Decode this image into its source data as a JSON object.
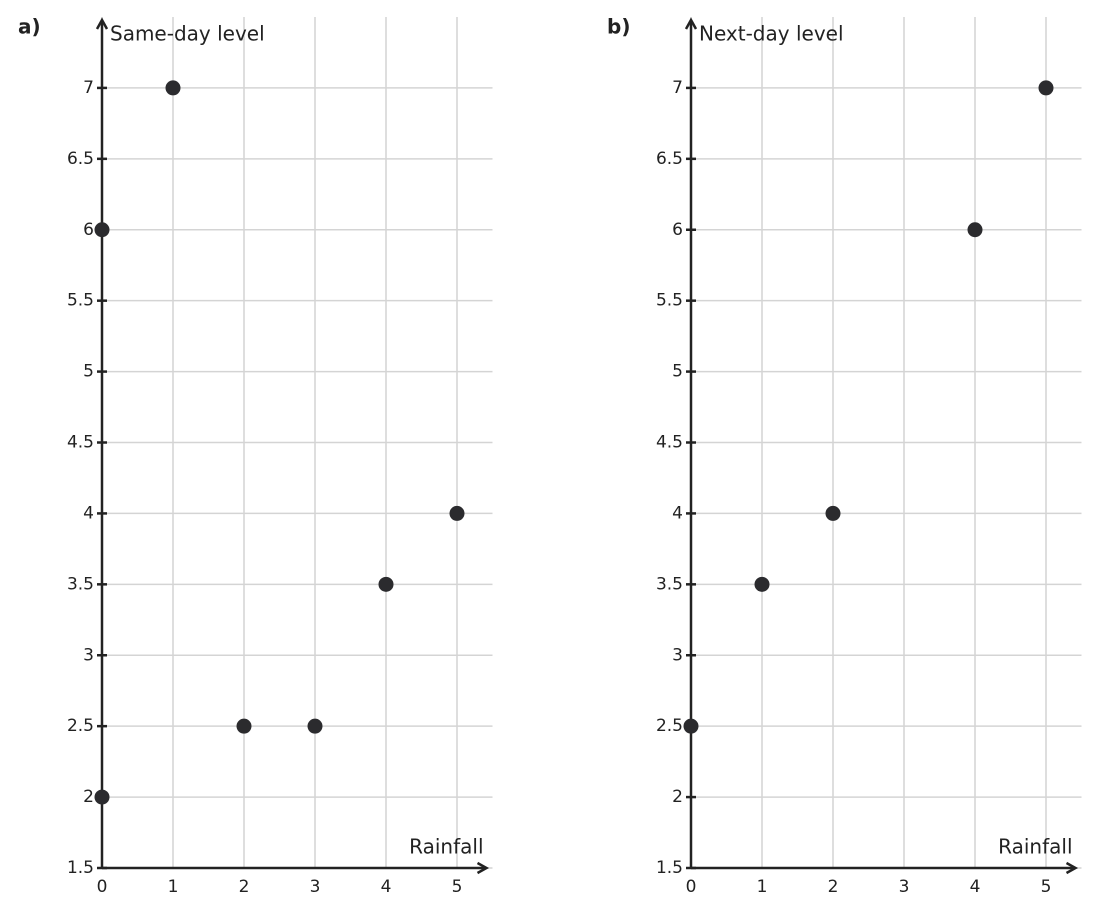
{
  "chart_data": [
    {
      "type": "scatter",
      "title": "a)",
      "x_label": "Rainfall",
      "y_label": "Same-day level",
      "color": "#2b2b2e",
      "grid": true,
      "x": [
        0,
        1,
        0,
        2,
        3,
        4,
        5
      ],
      "values": [
        6,
        7,
        2,
        2.5,
        2.5,
        3.5,
        4
      ],
      "xlim": [
        0,
        5.5
      ],
      "ylim": [
        1.5,
        7.5
      ],
      "xticks": [
        0,
        1,
        2,
        3,
        4,
        5
      ],
      "yticks": [
        1.5,
        2,
        2.5,
        3,
        3.5,
        4,
        4.5,
        5,
        5.5,
        6,
        6.5,
        7
      ]
    },
    {
      "type": "scatter",
      "title": "b)",
      "x_label": "Rainfall",
      "y_label": "Next-day level",
      "color": "#2b2b2e",
      "grid": true,
      "x": [
        0,
        1,
        2,
        4,
        5
      ],
      "values": [
        2.5,
        3.5,
        4,
        6,
        7
      ],
      "xlim": [
        0,
        5.5
      ],
      "ylim": [
        1.5,
        7.5
      ],
      "xticks": [
        0,
        1,
        2,
        3,
        4,
        5
      ],
      "yticks": [
        1.5,
        2,
        2.5,
        3,
        3.5,
        4,
        4.5,
        5,
        5.5,
        6,
        6.5,
        7
      ]
    }
  ]
}
